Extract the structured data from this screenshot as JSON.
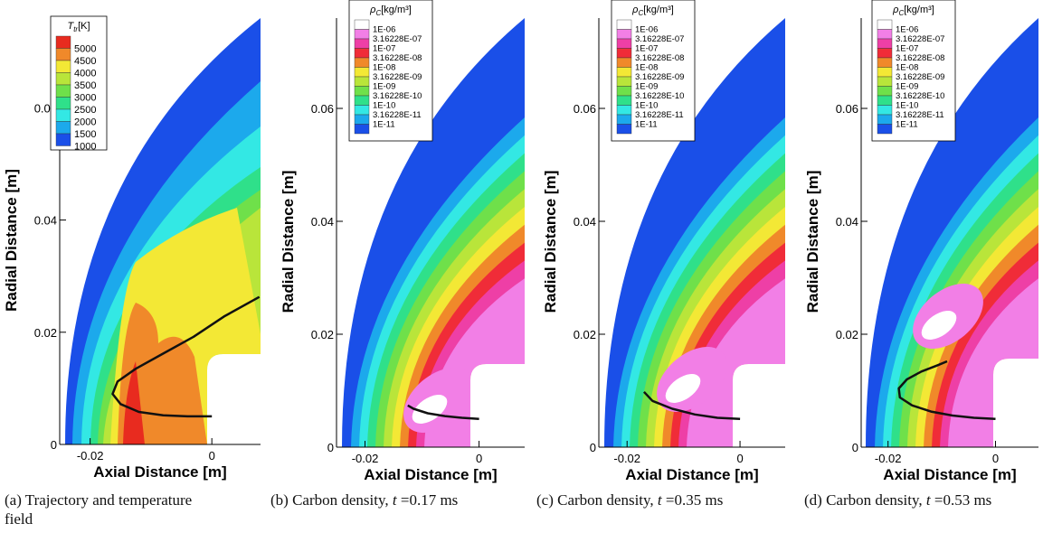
{
  "colors": {
    "background_field": "#1a4fe8",
    "t_levels": [
      "#1a4fe8",
      "#1ca9ec",
      "#33e8e4",
      "#2fe08a",
      "#6fe04a",
      "#b9e53a",
      "#f3e835",
      "#f4c22d",
      "#f0892a",
      "#e82b1f"
    ],
    "rho_levels": [
      "#1a4fe8",
      "#1ca9ec",
      "#33e8e4",
      "#2fe08a",
      "#6fe04a",
      "#b9e53a",
      "#f3e835",
      "#f0892a",
      "#f02c38",
      "#ee3fa6",
      "#f27fe6",
      "#ffffff"
    ],
    "trajectory": "#111111"
  },
  "chart_data": [
    {
      "type": "contour",
      "xlabel": "Axial Distance [m]",
      "ylabel": "Radial Distance [m]",
      "x_ticks": [
        "-0.02",
        "0"
      ],
      "y_ticks": [
        "0",
        "0.02",
        "0.04",
        "0.06"
      ],
      "xlim": [
        -0.025,
        0.008
      ],
      "ylim": [
        0,
        0.076
      ],
      "legend_title": "T",
      "legend_title_sub": "tr",
      "legend_title_unit": "[K]",
      "legend_position": "top-left",
      "legend_levels": [
        "5000",
        "4500",
        "4000",
        "3500",
        "3000",
        "2500",
        "2000",
        "1500",
        "1000"
      ],
      "trajectory": {
        "x": [
          0.0,
          -0.004,
          -0.008,
          -0.012,
          -0.015,
          -0.0163,
          -0.0155,
          -0.0125,
          -0.008,
          -0.003,
          0.002,
          0.0078
        ],
        "y": [
          0.005,
          0.005,
          0.0052,
          0.0058,
          0.0072,
          0.009,
          0.0112,
          0.0135,
          0.0162,
          0.0192,
          0.0228,
          0.0263
        ]
      },
      "caption": "(a) Trajectory and temperature field"
    },
    {
      "type": "contour",
      "xlabel": "Axial Distance [m]",
      "ylabel": "Radial Distance [m]",
      "x_ticks": [
        "-0.02",
        "0"
      ],
      "y_ticks": [
        "0",
        "0.02",
        "0.04",
        "0.06"
      ],
      "xlim": [
        -0.025,
        0.008
      ],
      "ylim": [
        0,
        0.076
      ],
      "legend_title": "ρ",
      "legend_title_sub": "C",
      "legend_title_unit": "[kg/m³]",
      "legend_position": "top-left",
      "legend_levels": [
        "1E-06",
        "3.16228E-07",
        "1E-07",
        "3.16228E-08",
        "1E-08",
        "3.16228E-09",
        "1E-09",
        "3.16228E-10",
        "1E-10",
        "3.16228E-11",
        "1E-11"
      ],
      "trajectory": {
        "x": [
          0.0,
          -0.003,
          -0.006,
          -0.009,
          -0.0115,
          -0.0125
        ],
        "y": [
          0.005,
          0.0052,
          0.0055,
          0.006,
          0.0068,
          0.0074
        ]
      },
      "caption_prefix": "(b) Carbon density,",
      "caption_var": "t",
      "caption_value": "=0.17 ms"
    },
    {
      "type": "contour",
      "xlabel": "Axial Distance [m]",
      "ylabel": "Radial Distance [m]",
      "x_ticks": [
        "-0.02",
        "0"
      ],
      "y_ticks": [
        "0",
        "0.02",
        "0.04",
        "0.06"
      ],
      "xlim": [
        -0.025,
        0.008
      ],
      "ylim": [
        0,
        0.076
      ],
      "legend_title": "ρ",
      "legend_title_sub": "C",
      "legend_title_unit": "[kg/m³]",
      "legend_position": "top-left",
      "legend_levels": [
        "1E-06",
        "3.16228E-07",
        "1E-07",
        "3.16228E-08",
        "1E-08",
        "3.16228E-09",
        "1E-09",
        "3.16228E-10",
        "1E-10",
        "3.16228E-11",
        "1E-11"
      ],
      "trajectory": {
        "x": [
          0.0,
          -0.004,
          -0.008,
          -0.012,
          -0.0155,
          -0.017
        ],
        "y": [
          0.005,
          0.0052,
          0.0058,
          0.0068,
          0.0082,
          0.0098
        ]
      },
      "caption_prefix": "(c) Carbon density,",
      "caption_var": "t",
      "caption_value": "=0.35 ms"
    },
    {
      "type": "contour",
      "xlabel": "Axial Distance [m]",
      "ylabel": "Radial Distance [m]",
      "x_ticks": [
        "-0.02",
        "0"
      ],
      "y_ticks": [
        "0",
        "0.02",
        "0.04",
        "0.06"
      ],
      "xlim": [
        -0.025,
        0.008
      ],
      "ylim": [
        0,
        0.076
      ],
      "legend_title": "ρ",
      "legend_title_sub": "C",
      "legend_title_unit": "[kg/m³]",
      "legend_position": "top-left",
      "legend_levels": [
        "1E-06",
        "3.16228E-07",
        "1E-07",
        "3.16228E-08",
        "1E-08",
        "3.16228E-09",
        "1E-09",
        "3.16228E-10",
        "1E-10",
        "3.16228E-11",
        "1E-11"
      ],
      "trajectory": {
        "x": [
          0.0,
          -0.004,
          -0.008,
          -0.012,
          -0.0155,
          -0.0178,
          -0.018,
          -0.0165,
          -0.0138,
          -0.0108,
          -0.009
        ],
        "y": [
          0.005,
          0.0052,
          0.0056,
          0.0063,
          0.0074,
          0.0088,
          0.0104,
          0.012,
          0.0134,
          0.0145,
          0.0152
        ]
      },
      "caption_prefix": "(d) Carbon density,",
      "caption_var": "t",
      "caption_value": "=0.53 ms"
    }
  ]
}
